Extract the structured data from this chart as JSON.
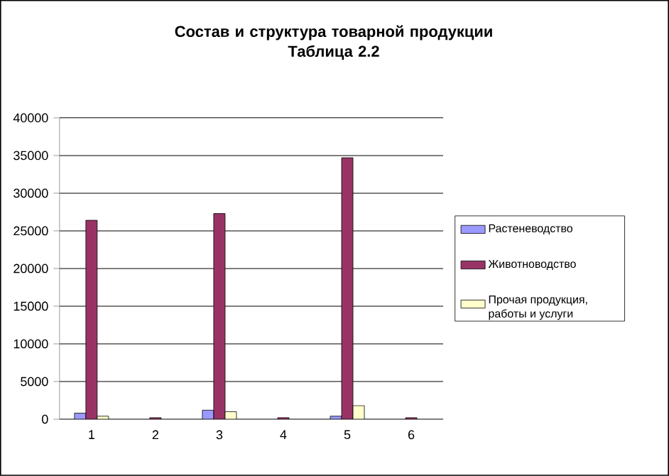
{
  "chart_data": {
    "type": "bar",
    "title": "Состав и структура товарной продукции\nТаблица 2.2",
    "categories": [
      "1",
      "2",
      "3",
      "4",
      "5",
      "6"
    ],
    "series": [
      {
        "name": "Растеневодство",
        "color": "#9999ff",
        "values": [
          800,
          null,
          1200,
          null,
          400,
          null
        ]
      },
      {
        "name": "Животноводство",
        "color": "#993366",
        "values": [
          26400,
          200,
          27300,
          200,
          34700,
          200
        ]
      },
      {
        "name": "Прочая продукция, работы и услуги",
        "color": "#ffffcc",
        "values": [
          400,
          null,
          1000,
          null,
          1800,
          null
        ]
      }
    ],
    "ylim": [
      0,
      40000
    ],
    "yticks": [
      0,
      5000,
      10000,
      15000,
      20000,
      25000,
      30000,
      35000,
      40000
    ],
    "grid": "y",
    "legend": "right"
  }
}
